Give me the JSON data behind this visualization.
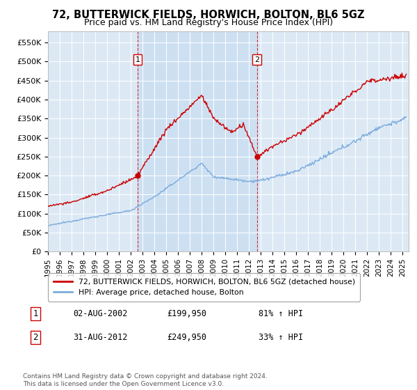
{
  "title": "72, BUTTERWICK FIELDS, HORWICH, BOLTON, BL6 5GZ",
  "subtitle": "Price paid vs. HM Land Registry's House Price Index (HPI)",
  "ylabel_ticks": [
    "£0",
    "£50K",
    "£100K",
    "£150K",
    "£200K",
    "£250K",
    "£300K",
    "£350K",
    "£400K",
    "£450K",
    "£500K",
    "£550K"
  ],
  "ytick_values": [
    0,
    50000,
    100000,
    150000,
    200000,
    250000,
    300000,
    350000,
    400000,
    450000,
    500000,
    550000
  ],
  "ylim": [
    0,
    580000
  ],
  "xlim_start": 1995.0,
  "xlim_end": 2025.5,
  "background_color": "#dce9f5",
  "plot_bg": "#dce9f5",
  "sale1_date": 2002.58,
  "sale1_price": 199950,
  "sale2_date": 2012.67,
  "sale2_price": 249950,
  "legend_label_red": "72, BUTTERWICK FIELDS, HORWICH, BOLTON, BL6 5GZ (detached house)",
  "legend_label_blue": "HPI: Average price, detached house, Bolton",
  "annotation1_label": "1",
  "annotation1_date": "02-AUG-2002",
  "annotation1_price": "£199,950",
  "annotation1_hpi": "81% ↑ HPI",
  "annotation2_label": "2",
  "annotation2_date": "31-AUG-2012",
  "annotation2_price": "£249,950",
  "annotation2_hpi": "33% ↑ HPI",
  "footer": "Contains HM Land Registry data © Crown copyright and database right 2024.\nThis data is licensed under the Open Government Licence v3.0.",
  "red_color": "#cc0000",
  "blue_color": "#7aabdc"
}
